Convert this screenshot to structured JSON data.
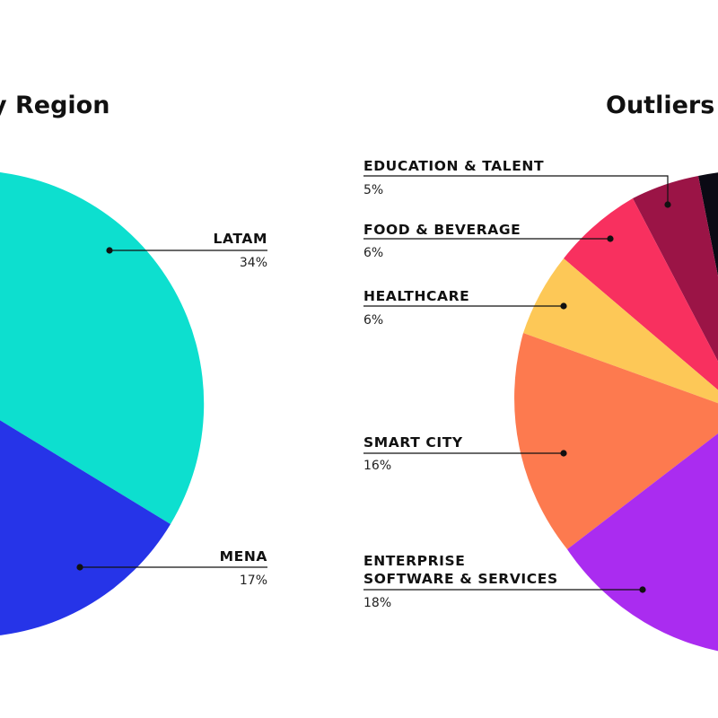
{
  "chart_data": [
    {
      "type": "pie",
      "title": "y Region",
      "slices": [
        {
          "label": "LATAM",
          "value": 34,
          "value_label": "34%",
          "color": "#0ddfcf"
        },
        {
          "label": "MENA",
          "value": 17,
          "value_label": "17%",
          "color": "#2634e8"
        }
      ]
    },
    {
      "type": "pie",
      "title": "Outliers",
      "slices": [
        {
          "label": "EDUCATION & TALENT",
          "value": 5,
          "value_label": "5%",
          "color": "#9b1446"
        },
        {
          "label": "FOOD & BEVERAGE",
          "value": 6,
          "value_label": "6%",
          "color": "#f8305f"
        },
        {
          "label": "HEALTHCARE",
          "value": 6,
          "value_label": "6%",
          "color": "#fdc857"
        },
        {
          "label": "SMART CITY",
          "value": 16,
          "value_label": "16%",
          "color": "#fd7a4f"
        },
        {
          "label": "ENTERPRISE\nSOFTWARE & SERVICES",
          "value": 18,
          "value_label": "18%",
          "color": "#aa2cf0"
        }
      ],
      "partial_colors": {
        "black_slice": "#0b0a14",
        "magenta_slice": "#c21675"
      }
    }
  ]
}
